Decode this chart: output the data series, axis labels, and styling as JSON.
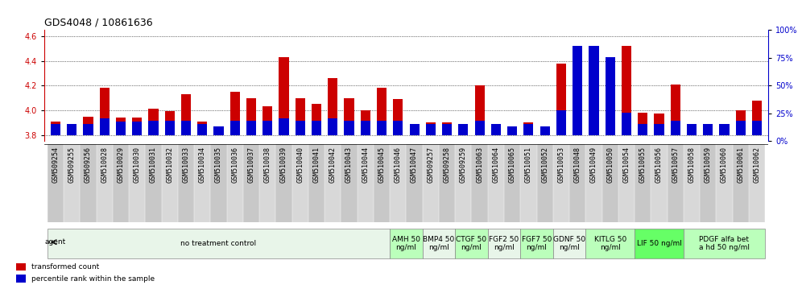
{
  "title": "GDS4048 / 10861636",
  "samples": [
    "GSM509254",
    "GSM509255",
    "GSM509256",
    "GSM510028",
    "GSM510029",
    "GSM510030",
    "GSM510031",
    "GSM510032",
    "GSM510033",
    "GSM510034",
    "GSM510035",
    "GSM510036",
    "GSM510037",
    "GSM510038",
    "GSM510039",
    "GSM510040",
    "GSM510041",
    "GSM510042",
    "GSM510043",
    "GSM510044",
    "GSM510045",
    "GSM510046",
    "GSM510047",
    "GSM509257",
    "GSM509258",
    "GSM509259",
    "GSM510063",
    "GSM510064",
    "GSM510065",
    "GSM510051",
    "GSM510052",
    "GSM510053",
    "GSM510048",
    "GSM510049",
    "GSM510050",
    "GSM510054",
    "GSM510055",
    "GSM510056",
    "GSM510057",
    "GSM510058",
    "GSM510059",
    "GSM510060",
    "GSM510061",
    "GSM510062"
  ],
  "red_values": [
    3.91,
    3.86,
    3.95,
    4.18,
    3.94,
    3.94,
    4.01,
    3.99,
    4.13,
    3.91,
    3.82,
    4.15,
    4.1,
    4.03,
    4.43,
    4.1,
    4.05,
    4.26,
    4.1,
    4.0,
    4.18,
    4.09,
    3.87,
    3.9,
    3.9,
    3.87,
    4.2,
    3.88,
    3.84,
    3.9,
    3.84,
    4.38,
    4.1,
    4.1,
    4.09,
    4.52,
    3.98,
    3.97,
    4.21,
    3.88,
    3.85,
    3.88,
    4.0,
    4.08
  ],
  "blue_values_pct": [
    10,
    10,
    10,
    15,
    12,
    12,
    13,
    13,
    13,
    10,
    8,
    13,
    13,
    13,
    15,
    13,
    13,
    15,
    13,
    13,
    13,
    13,
    10,
    10,
    10,
    10,
    13,
    10,
    8,
    10,
    8,
    22,
    80,
    80,
    70,
    20,
    10,
    10,
    13,
    10,
    10,
    10,
    13,
    13
  ],
  "ylim_left": [
    3.75,
    4.65
  ],
  "ylim_right": [
    0,
    100
  ],
  "yticks_left": [
    3.8,
    4.0,
    4.2,
    4.4,
    4.6
  ],
  "yticks_right": [
    0,
    25,
    50,
    75,
    100
  ],
  "bar_width": 0.6,
  "baseline": 3.8,
  "agent_groups": [
    {
      "label": "no treatment control",
      "start": 0,
      "end": 20,
      "color": "#e8f5e9"
    },
    {
      "label": "AMH 50\nng/ml",
      "start": 21,
      "end": 22,
      "color": "#bbffbb"
    },
    {
      "label": "BMP4 50\nng/ml",
      "start": 23,
      "end": 24,
      "color": "#e8f5e9"
    },
    {
      "label": "CTGF 50\nng/ml",
      "start": 25,
      "end": 26,
      "color": "#bbffbb"
    },
    {
      "label": "FGF2 50\nng/ml",
      "start": 27,
      "end": 28,
      "color": "#e8f5e9"
    },
    {
      "label": "FGF7 50\nng/ml",
      "start": 29,
      "end": 30,
      "color": "#bbffbb"
    },
    {
      "label": "GDNF 50\nng/ml",
      "start": 31,
      "end": 32,
      "color": "#e8f5e9"
    },
    {
      "label": "KITLG 50\nng/ml",
      "start": 33,
      "end": 35,
      "color": "#bbffbb"
    },
    {
      "label": "LIF 50 ng/ml",
      "start": 36,
      "end": 38,
      "color": "#66ff66"
    },
    {
      "label": "PDGF alfa bet\na hd 50 ng/ml",
      "start": 39,
      "end": 43,
      "color": "#bbffbb"
    }
  ],
  "red_color": "#cc0000",
  "blue_color": "#0000cc",
  "left_axis_color": "#cc0000",
  "right_axis_color": "#0000cc",
  "title_fontsize": 9,
  "tick_fontsize": 6,
  "label_fontsize": 6,
  "agent_fontsize": 6.5
}
